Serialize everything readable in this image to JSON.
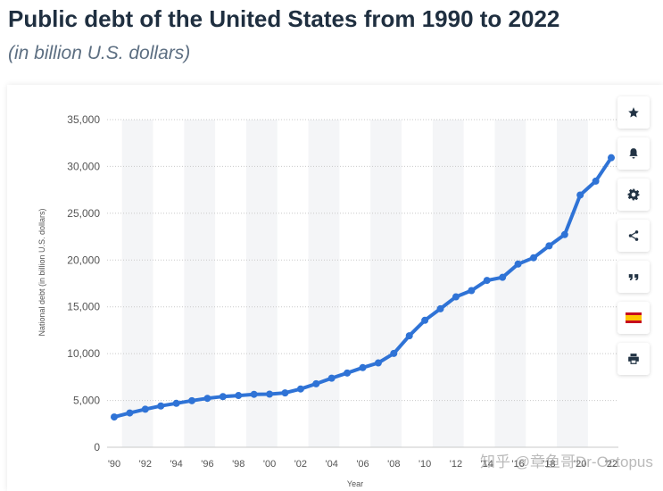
{
  "header": {
    "title": "Public debt of the United States from 1990 to 2022",
    "subtitle": "(in billion U.S. dollars)"
  },
  "tools": {
    "icons": [
      "star-icon",
      "bell-icon",
      "gear-icon",
      "share-icon",
      "quote-icon",
      "spain-flag-icon",
      "print-icon"
    ]
  },
  "watermark": "知乎 @章鱼哥Dr-Octopus",
  "colors": {
    "line": "#2f73d6",
    "grid": "#c9c9c9",
    "band": "#f4f5f7",
    "axis_text": "#555555"
  },
  "chart_data": {
    "type": "line",
    "title": "Public debt of the United States from 1990 to 2022",
    "subtitle": "(in billion U.S. dollars)",
    "xlabel": "Year",
    "ylabel": "National debt (in billion U.S. dollars)",
    "ylim": [
      0,
      35000
    ],
    "yticks": [
      0,
      5000,
      10000,
      15000,
      20000,
      25000,
      30000,
      35000
    ],
    "ytick_labels": [
      "0",
      "5,000",
      "10,000",
      "15,000",
      "20,000",
      "25,000",
      "30,000",
      "35,000"
    ],
    "xtick_labels": [
      "'90",
      "'92",
      "'94",
      "'96",
      "'98",
      "'00",
      "'02",
      "'04",
      "'06",
      "'08",
      "'10",
      "'12",
      "'14",
      "'16",
      "'18",
      "'20",
      "'22"
    ],
    "grid": true,
    "x": [
      1990,
      1991,
      1992,
      1993,
      1994,
      1995,
      1996,
      1997,
      1998,
      1999,
      2000,
      2001,
      2002,
      2003,
      2004,
      2005,
      2006,
      2007,
      2008,
      2009,
      2010,
      2011,
      2012,
      2013,
      2014,
      2015,
      2016,
      2017,
      2018,
      2019,
      2020,
      2021,
      2022
    ],
    "series": [
      {
        "values": [
          3233,
          3665,
          4065,
          4411,
          4693,
          4974,
          5225,
          5413,
          5526,
          5656,
          5674,
          5807,
          6228,
          6783,
          7379,
          7933,
          8507,
          9008,
          10025,
          11910,
          13562,
          14790,
          16066,
          16738,
          17824,
          18151,
          19573,
          20245,
          21516,
          22719,
          26945,
          28429,
          30929
        ]
      }
    ]
  }
}
